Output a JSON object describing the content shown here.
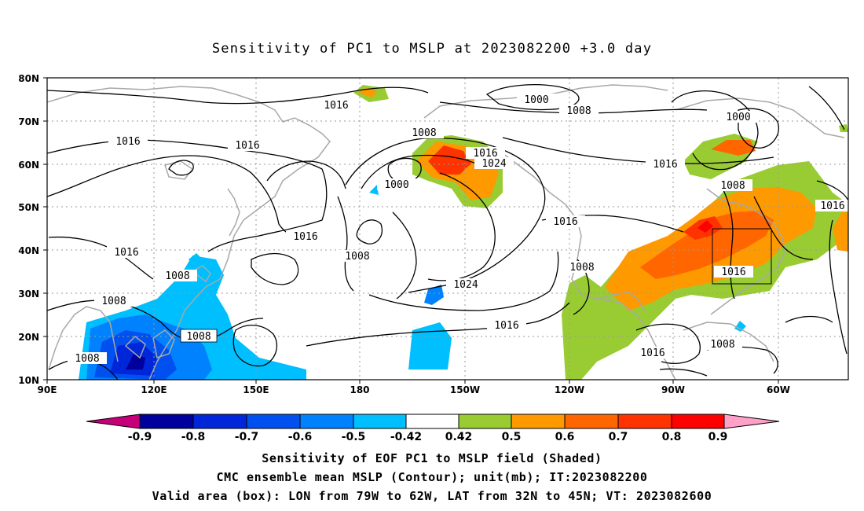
{
  "title": "Sensitivity of PC1 to MSLP at 2023082200 +3.0 day",
  "axes": {
    "lat_labels": [
      "80N",
      "70N",
      "60N",
      "50N",
      "40N",
      "30N",
      "20N",
      "10N"
    ],
    "lon_labels": [
      "90E",
      "120E",
      "150E",
      "180",
      "150W",
      "120W",
      "90W",
      "60W"
    ]
  },
  "contour_labels": [
    "1016",
    "1000",
    "1008",
    "1016",
    "1000",
    "1016",
    "1016",
    "1008",
    "1016",
    "1024",
    "1000",
    "1016",
    "1016",
    "1008",
    "1016",
    "1016",
    "1008",
    "1008",
    "1024",
    "1008",
    "1016",
    "1008",
    "1016",
    "1008",
    "1008",
    "1016"
  ],
  "colorbar": {
    "labels": [
      "-0.9",
      "-0.8",
      "-0.7",
      "-0.6",
      "-0.5",
      "-0.42",
      "0.42",
      "0.5",
      "0.6",
      "0.7",
      "0.8",
      "0.9"
    ],
    "colors": [
      "#c6007a",
      "#00009c",
      "#0026d9",
      "#0050f0",
      "#0082ff",
      "#00bfff",
      "#ffffff",
      "#99cc33",
      "#ff9900",
      "#ff6600",
      "#ff3300",
      "#ff0000",
      "#ffa0c8"
    ]
  },
  "footer": {
    "line1": "Sensitivity of EOF PC1 to MSLP field (Shaded)",
    "line2": "CMC ensemble mean MSLP (Contour); unit(mb); IT:2023082200",
    "line3": "Valid area (box): LON from 79W to 62W, LAT from 32N to 45N; VT: 2023082600"
  }
}
